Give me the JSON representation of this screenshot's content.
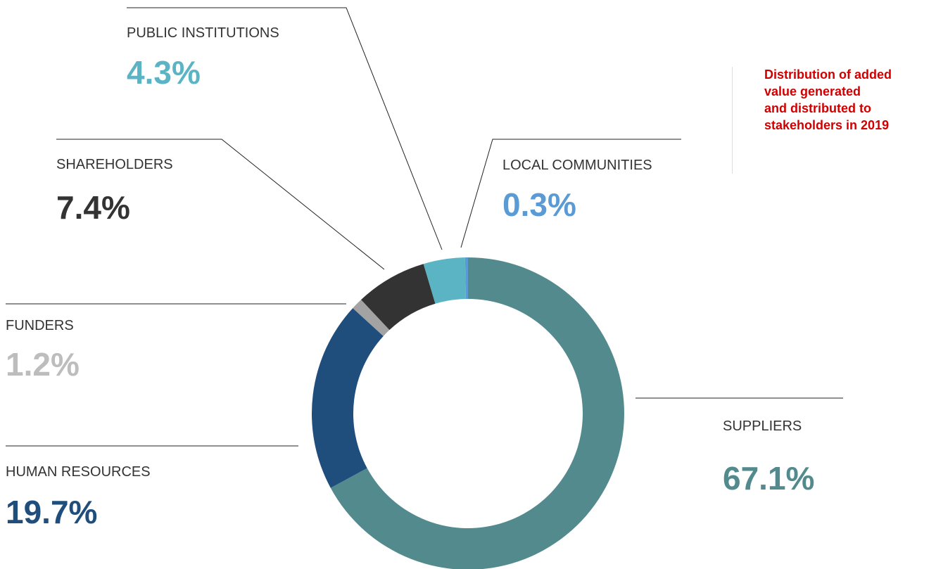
{
  "chart_data": {
    "type": "donut",
    "title": [
      "Distribution of added",
      "value generated",
      "and distributed to",
      "stakeholders in 2019"
    ],
    "categories": [
      "SUPPLIERS",
      "HUMAN RESOURCES",
      "FUNDERS",
      "SHAREHOLDERS",
      "PUBLIC INSTITUTIONS",
      "LOCAL COMMUNITIES"
    ],
    "values": [
      67.1,
      19.7,
      1.2,
      7.4,
      4.3,
      0.3
    ],
    "value_labels": [
      "67.1%",
      "19.7%",
      "1.2%",
      "7.4%",
      "4.3%",
      "0.3%"
    ],
    "colors": [
      "#528a8e",
      "#1f4e7d",
      "#a3a3a3",
      "#333333",
      "#5ab4c4",
      "#5b9bd5"
    ],
    "title_color": "#d00000"
  }
}
